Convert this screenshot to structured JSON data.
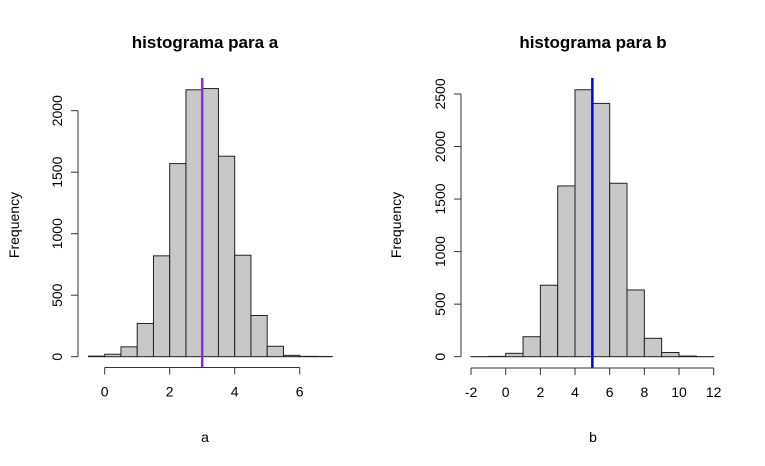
{
  "chart_data": [
    {
      "type": "bar",
      "title": "histograma para a",
      "xlabel": "a",
      "ylabel": "Frequency",
      "bin_edges": [
        -0.5,
        0,
        0.5,
        1,
        1.5,
        2,
        2.5,
        3,
        3.5,
        4,
        4.5,
        5,
        5.5,
        6,
        6.5,
        7
      ],
      "values": [
        5,
        20,
        80,
        270,
        820,
        1570,
        2170,
        2180,
        1630,
        825,
        335,
        85,
        11,
        3,
        2
      ],
      "xticks": [
        0,
        2,
        4,
        6
      ],
      "xtick_labels": [
        "0",
        "2",
        "4",
        "6"
      ],
      "yticks": [
        0,
        500,
        1000,
        1500,
        2000
      ],
      "ytick_labels": [
        "0",
        "500",
        "1000",
        "1500",
        "2000"
      ],
      "xlim": [
        -0.5,
        7
      ],
      "ylim": [
        0,
        2200
      ],
      "vline": {
        "x": 3,
        "color": "#8a2be2"
      },
      "bar_color": "#c8c8c8",
      "grid": false
    },
    {
      "type": "bar",
      "title": "histograma para b",
      "xlabel": "b",
      "ylabel": "Frequency",
      "bin_edges": [
        -2,
        -1,
        0,
        1,
        2,
        3,
        4,
        5,
        6,
        7,
        8,
        9,
        10,
        11,
        12
      ],
      "values": [
        1,
        3,
        32,
        190,
        680,
        1625,
        2540,
        2410,
        1650,
        635,
        175,
        40,
        6,
        1
      ],
      "xticks": [
        -2,
        0,
        2,
        4,
        6,
        8,
        10,
        12
      ],
      "xtick_labels": [
        "-2",
        "0",
        "2",
        "4",
        "6",
        "8",
        "10",
        "12"
      ],
      "yticks": [
        0,
        500,
        1000,
        1500,
        2000,
        2500
      ],
      "ytick_labels": [
        "0",
        "500",
        "1000",
        "1500",
        "2000",
        "2500"
      ],
      "xlim": [
        -2,
        12
      ],
      "ylim": [
        0,
        2540
      ],
      "vline": {
        "x": 5,
        "color": "#0000ee"
      },
      "bar_color": "#c8c8c8",
      "grid": false
    }
  ]
}
